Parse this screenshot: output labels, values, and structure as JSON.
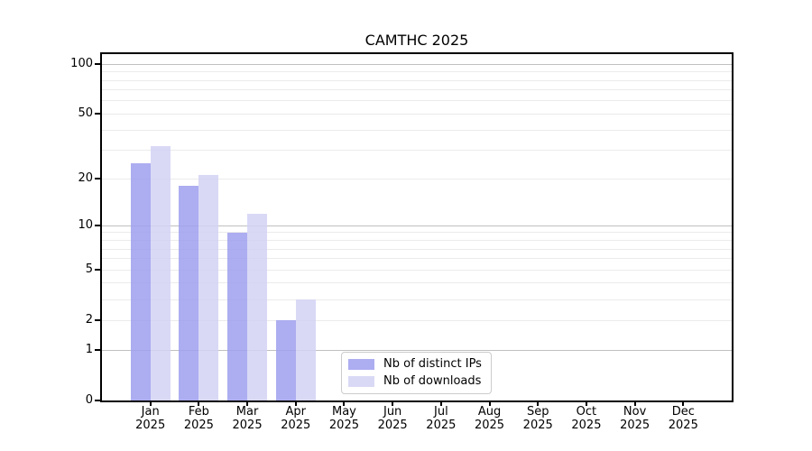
{
  "chart_data": {
    "type": "bar",
    "title": "CAMTHC 2025",
    "x_axis": {
      "months": [
        "Jan",
        "Feb",
        "Mar",
        "Apr",
        "May",
        "Jun",
        "Jul",
        "Aug",
        "Sep",
        "Oct",
        "Nov",
        "Dec"
      ],
      "year": "2025"
    },
    "y_axis": {
      "scale": "log1p",
      "max": 115,
      "tick_values": [
        0,
        1,
        2,
        5,
        10,
        20,
        50,
        100
      ],
      "tick_labels": [
        "0",
        "1",
        "2",
        "5",
        "10",
        "20",
        "50",
        "100"
      ],
      "major_gridlines": [
        1,
        10,
        100
      ],
      "minor_gridlines": [
        2,
        3,
        4,
        5,
        6,
        7,
        8,
        9,
        20,
        30,
        40,
        50,
        60,
        70,
        80,
        90
      ]
    },
    "series": [
      {
        "name": "Nb of distinct IPs",
        "slug": "distinct-ips",
        "color": "#9f9fef",
        "fill_opacity": 0.85,
        "values": [
          25,
          18,
          9,
          2,
          0,
          0,
          0,
          0,
          0,
          0,
          0,
          0
        ]
      },
      {
        "name": "Nb of downloads",
        "slug": "downloads",
        "color": "#d2d2f4",
        "fill_opacity": 0.85,
        "values": [
          32,
          21,
          12,
          3,
          0,
          0,
          0,
          0,
          0,
          0,
          0,
          0
        ]
      }
    ],
    "legend_position": "bottom-center",
    "grid": true,
    "colors": {
      "major_grid": "#c0c0c0",
      "minor_grid": "#ebebeb",
      "spine": "#000000",
      "text": "#000000",
      "background": "#ffffff"
    }
  }
}
